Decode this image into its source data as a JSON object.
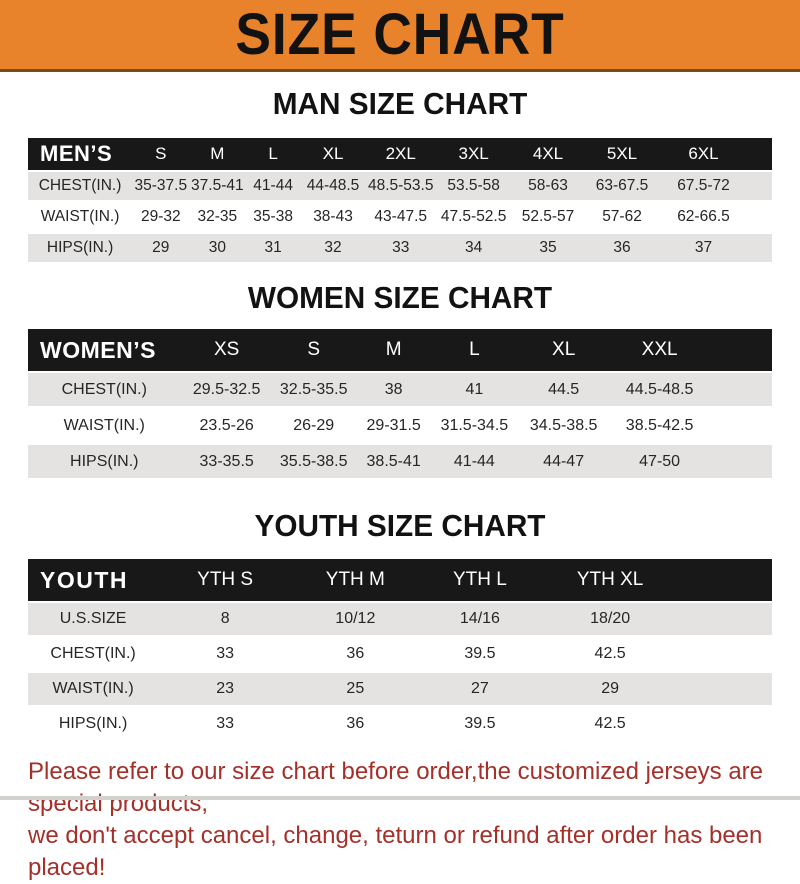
{
  "header": {
    "title": "SIZE CHART"
  },
  "sections": [
    {
      "id": "men",
      "title": "MAN SIZE CHART",
      "header_label": "MEN’S",
      "columns": [
        "S",
        "M",
        "L",
        "XL",
        "2XL",
        "3XL",
        "4XL",
        "5XL",
        "6XL"
      ],
      "rows": [
        {
          "label": "CHEST(IN.)",
          "values": [
            "35-37.5",
            "37.5-41",
            "41-44",
            "44-48.5",
            "48.5-53.5",
            "53.5-58",
            "58-63",
            "63-67.5",
            "67.5-72"
          ]
        },
        {
          "label": "WAIST(IN.)",
          "values": [
            "29-32",
            "32-35",
            "35-38",
            "38-43",
            "43-47.5",
            "47.5-52.5",
            "52.5-57",
            "57-62",
            "62-66.5"
          ]
        },
        {
          "label": "HIPS(IN.)",
          "values": [
            "29",
            "30",
            "31",
            "32",
            "33",
            "34",
            "35",
            "36",
            "37"
          ]
        }
      ]
    },
    {
      "id": "women",
      "title": "WOMEN SIZE CHART",
      "header_label": "WOMEN’S",
      "columns": [
        "XS",
        "S",
        "M",
        "L",
        "XL",
        "XXL"
      ],
      "rows": [
        {
          "label": "CHEST(IN.)",
          "values": [
            "29.5-32.5",
            "32.5-35.5",
            "38",
            "41",
            "44.5",
            "44.5-48.5"
          ]
        },
        {
          "label": "WAIST(IN.)",
          "values": [
            "23.5-26",
            "26-29",
            "29-31.5",
            "31.5-34.5",
            "34.5-38.5",
            "38.5-42.5"
          ]
        },
        {
          "label": "HIPS(IN.)",
          "values": [
            "33-35.5",
            "35.5-38.5",
            "38.5-41",
            "41-44",
            "44-47",
            "47-50"
          ]
        }
      ]
    },
    {
      "id": "youth",
      "title": "YOUTH SIZE CHART",
      "header_label": "YOUTH",
      "columns": [
        "YTH S",
        "YTH M",
        "YTH L",
        "YTH XL"
      ],
      "rows": [
        {
          "label": "U.S.SIZE",
          "values": [
            "8",
            "10/12",
            "14/16",
            "18/20"
          ]
        },
        {
          "label": "CHEST(IN.)",
          "values": [
            "33",
            "36",
            "39.5",
            "42.5"
          ]
        },
        {
          "label": "WAIST(IN.)",
          "values": [
            "23",
            "25",
            "27",
            "29"
          ]
        },
        {
          "label": "HIPS(IN.)",
          "values": [
            "33",
            "36",
            "39.5",
            "42.5"
          ]
        }
      ]
    }
  ],
  "footer": {
    "line1": "Please refer to our size chart before order,the customized jerseys are special products,",
    "line2": "we don't accept cancel, change, teturn or refund after order has been placed!"
  },
  "colors": {
    "accent_orange": "#E8832C",
    "banner_border": "#7A4A16",
    "bar_black": "#181818",
    "row_gray": "#E4E3E1",
    "cell_text": "#262626",
    "footer_red": "#A5302A",
    "title_black": "#121212"
  }
}
